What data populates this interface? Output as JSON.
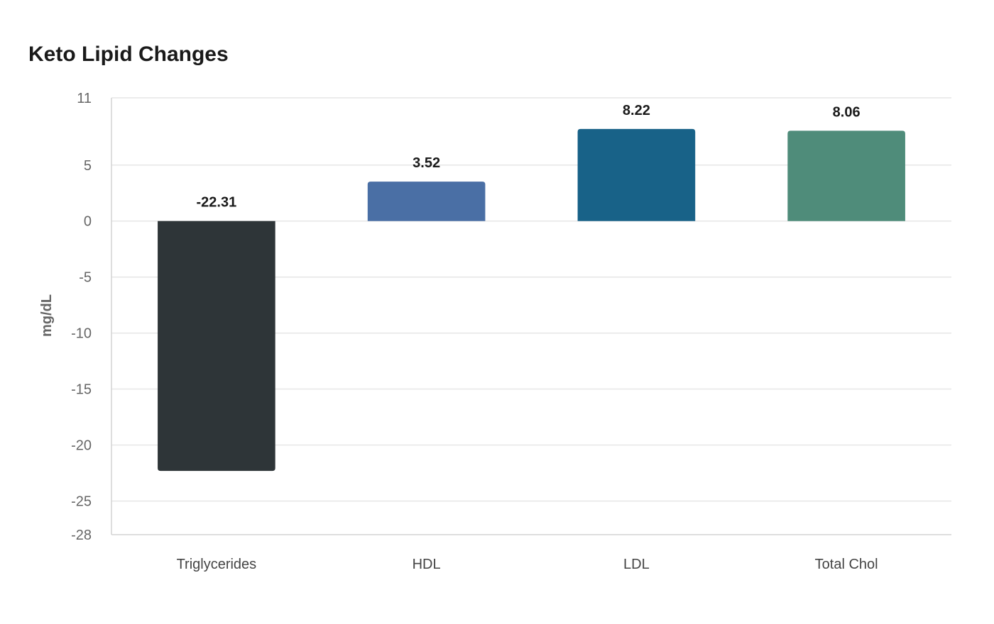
{
  "chart_data": {
    "type": "bar",
    "title": "Keto Lipid Changes",
    "xlabel": "",
    "ylabel": "mg/dL",
    "categories": [
      "Triglycerides",
      "HDL",
      "LDL",
      "Total Chol"
    ],
    "values": [
      -22.31,
      3.52,
      8.22,
      8.06
    ],
    "data_labels": [
      "-22.31",
      "3.52",
      "8.22",
      "8.06"
    ],
    "colors": [
      "#2e3538",
      "#4a6fa5",
      "#186288",
      "#4f8c7a"
    ],
    "ylim": [
      -28,
      11
    ],
    "yticks": [
      11,
      5,
      0,
      -5,
      -10,
      -15,
      -20,
      -25,
      -28
    ],
    "ytick_labels": [
      "11",
      "5",
      "0",
      "-5",
      "-10",
      "-15",
      "-20",
      "-25",
      "-28"
    ],
    "grid": true,
    "legend": "none"
  }
}
